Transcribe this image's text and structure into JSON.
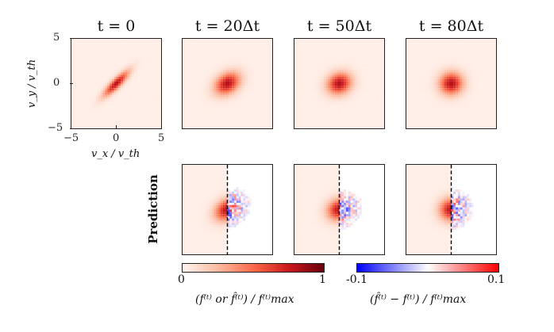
{
  "chart_data": {
    "type": "heatmap",
    "title": "",
    "columns": [
      {
        "label": "t = 0",
        "spread_major": 1.3,
        "spread_minor": 0.35,
        "angle_deg": 45
      },
      {
        "label": "t = 20Δt",
        "spread_major": 1.05,
        "spread_minor": 0.75,
        "angle_deg": 35
      },
      {
        "label": "t = 50Δt",
        "spread_major": 0.95,
        "spread_minor": 0.8,
        "angle_deg": 25
      },
      {
        "label": "t = 80Δt",
        "spread_major": 0.9,
        "spread_minor": 0.85,
        "angle_deg": 15
      }
    ],
    "xlabel": "v_x / v_th",
    "ylabel": "v_y / v_th",
    "xlim": [
      -5,
      5
    ],
    "ylim": [
      -5,
      5
    ],
    "xticks": [
      "−5",
      "0",
      "5"
    ],
    "yticks": [
      "5",
      "0",
      "−5"
    ],
    "row_label": "Prediction",
    "split_line_x": 0,
    "colorbar_left": {
      "min_label": "0",
      "max_label": "1",
      "label": "(f⁽ᵗ⁾ or f̂⁽ᵗ⁾) / f⁽ᵗ⁾max",
      "range": [
        0,
        1
      ],
      "colors": [
        "#fff5f0",
        "#fcbba1",
        "#fb6a4a",
        "#cb181d",
        "#67000d"
      ]
    },
    "colorbar_right": {
      "min_label": "-0.1",
      "max_label": "0.1",
      "label": "(f̂⁽ᵗ⁾ − f⁽ᵗ⁾) / f⁽ᵗ⁾max",
      "range": [
        -0.1,
        0.1
      ],
      "colors": [
        "#0000ff",
        "#8080ff",
        "#ffffff",
        "#ff8080",
        "#ff0000"
      ]
    }
  }
}
